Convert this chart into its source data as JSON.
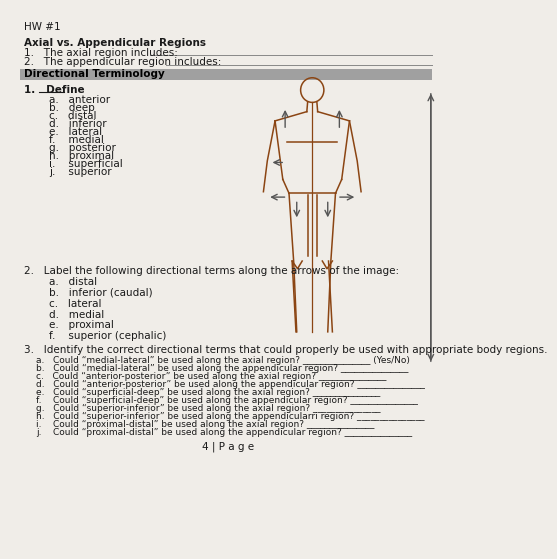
{
  "bg_color": "#f0ede8",
  "title": "HW #1",
  "section1_title": "Axial vs. Appendicular Regions",
  "q1": "1.   The axial region includes: ",
  "q2": "2.   The appendicular region includes: ",
  "banner_text": "Directional Terminology",
  "banner_bg": "#a0a0a0",
  "define_label": "1.   Define",
  "define_items": [
    "a.   anterior",
    "b.   deep",
    "c.   distal",
    "d.   inferior",
    "e.   lateral",
    "f.    medial",
    "g.   posterior",
    "h.   proximal",
    "i.    superficial",
    "j.    superior"
  ],
  "label2_intro": "2.   Label the following directional terms along the arrows of the image:",
  "label2_items": [
    "a.   distal",
    "b.   inferior (caudal)",
    "c.   lateral",
    "d.   medial",
    "e.   proximal",
    "f.    superior (cephalic)"
  ],
  "q3_intro": "3.   Identify the correct directional terms that could properly be used with appropriate body regions.",
  "q3_items": [
    "a.   Could “medial-lateral” be used along the axial region? _______________ (Yes/No)",
    "b.   Could “medial-lateral” be used along the appendicular region? _______________",
    "c.   Could “anterior-posterior” be used along the axial region? _______________",
    "d.   Could “anterior-posterior” be used along the appendicular region? _______________",
    "e.   Could “superficial-deep” be used along the axial region? _______________",
    "f.    Could “superficial-deep” be used along the appendicular region? _______________",
    "g.   Could “superior-inferior” be used along the axial region? _______________",
    "h.   Could “superior-inferior” be used along the appendicularri region? _______________",
    "i.    Could “proximal-distal” be used along the axial region? _______________",
    "j.    Could “proximal-distal” be used along the appendicular region? _______________"
  ],
  "footer": "4 | P a g e",
  "body_line_color": "#8B4513",
  "arrow_color": "#555555",
  "text_color": "#1a1a1a"
}
